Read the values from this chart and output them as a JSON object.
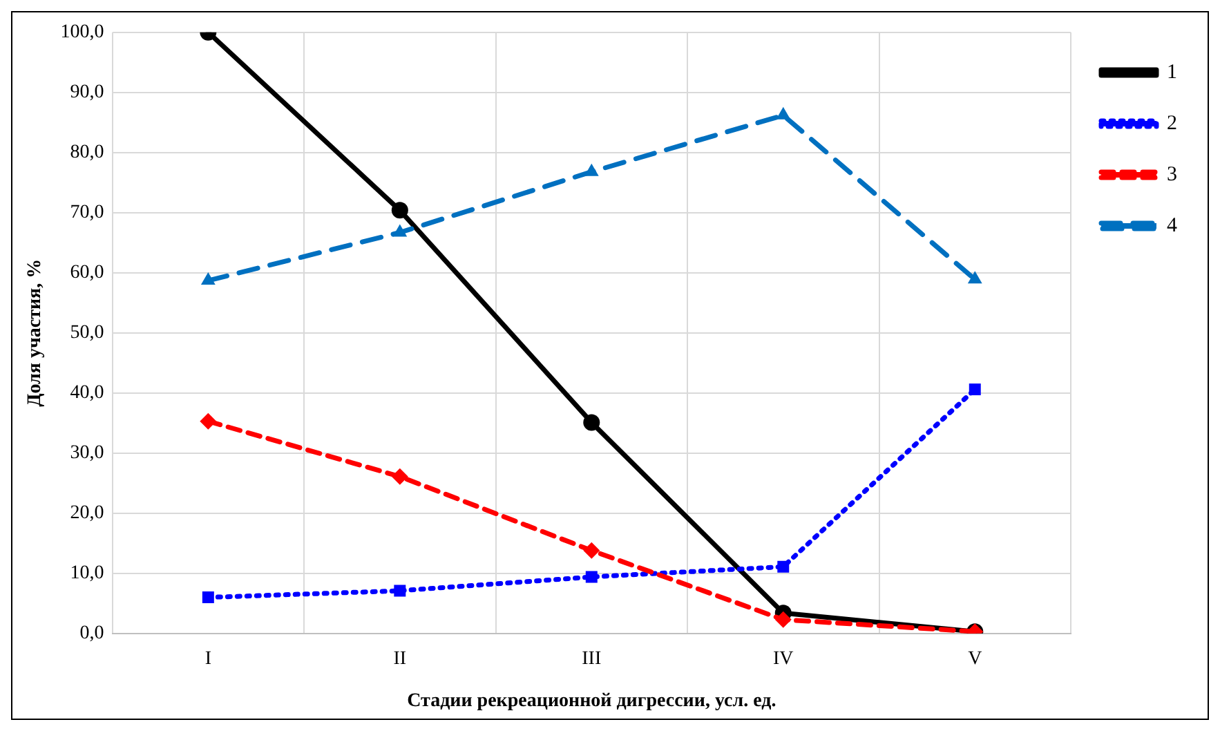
{
  "chart_data": {
    "type": "line",
    "xlabel": "Стадии рекреационной дигрессии, усл. ед.",
    "ylabel": "Доля участия, %",
    "categories": [
      "I",
      "II",
      "III",
      "IV",
      "V"
    ],
    "series": [
      {
        "name": "1",
        "color": "#000000",
        "marker": "circle",
        "line_style": "solid",
        "values": [
          100,
          70.4,
          35.1,
          3.4,
          0.3
        ]
      },
      {
        "name": "2",
        "color": "#0000ff",
        "marker": "square",
        "line_style": "dotted",
        "values": [
          6.0,
          7.1,
          9.4,
          11.1,
          40.6
        ]
      },
      {
        "name": "3",
        "color": "#ff0000",
        "marker": "diamond",
        "line_style": "dashed",
        "values": [
          35.3,
          26.1,
          13.8,
          2.3,
          0.3
        ]
      },
      {
        "name": "4",
        "color": "#0070c0",
        "marker": "triangle",
        "line_style": "dashed",
        "values": [
          58.7,
          66.7,
          76.8,
          86.2,
          58.9
        ]
      }
    ],
    "ylim": [
      0,
      100
    ],
    "yticks": [
      {
        "value": 0,
        "label": "0,0"
      },
      {
        "value": 10,
        "label": "10,0"
      },
      {
        "value": 20,
        "label": "20,0"
      },
      {
        "value": 30,
        "label": "30,0"
      },
      {
        "value": 40,
        "label": "40,0"
      },
      {
        "value": 50,
        "label": "50,0"
      },
      {
        "value": 60,
        "label": "60,0"
      },
      {
        "value": 70,
        "label": "70,0"
      },
      {
        "value": 80,
        "label": "80,0"
      },
      {
        "value": 90,
        "label": "90,0"
      },
      {
        "value": 100,
        "label": "100,0"
      }
    ],
    "grid": true,
    "legend": "right"
  }
}
